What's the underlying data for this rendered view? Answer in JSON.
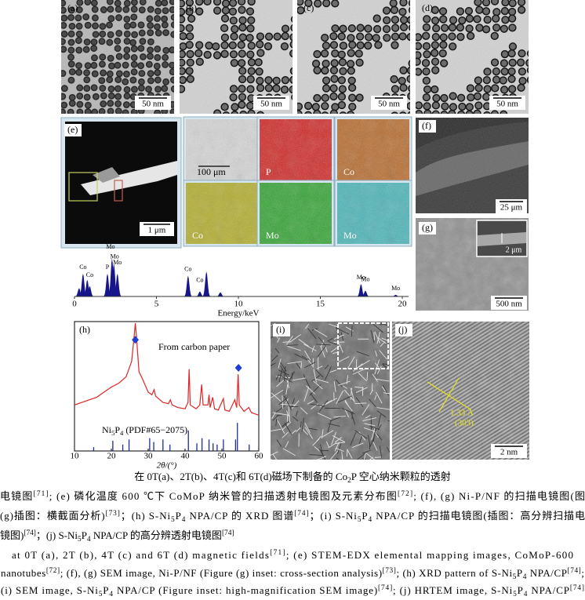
{
  "tem_panels": [
    {
      "label": "(a)",
      "scale_bar": "50 nm"
    },
    {
      "label": "(b)",
      "scale_bar": "50 nm"
    },
    {
      "label": "(c)",
      "scale_bar": "50 nm"
    },
    {
      "label": "(d)",
      "scale_bar": "50 nm"
    }
  ],
  "e_panel": {
    "label": "(e)",
    "scale_bar": "1 μm"
  },
  "element_maps": [
    {
      "text": "100 μm",
      "color": "#d9d9d9"
    },
    {
      "text": "P",
      "color": "#d31a17"
    },
    {
      "text": "Co",
      "color": "#b8641f"
    },
    {
      "text": "Co",
      "color": "#b3ad1e"
    },
    {
      "text": "Mo",
      "color": "#26a326"
    },
    {
      "text": "Mo",
      "color": "#3fb5b8"
    }
  ],
  "f_panel": {
    "label": "(f)",
    "scale_bar": "25 μm"
  },
  "g_panel": {
    "label": "(g)",
    "scale_bar": "500 nm",
    "inset_scale_bar": "2 μm"
  },
  "i_panel": {
    "label": "(i)"
  },
  "j_panel": {
    "label": "(j)",
    "scale_bar": "2 nm",
    "annotation": [
      "1.33 Å",
      "(303)"
    ]
  },
  "chart_data": [
    {
      "type": "spectrum",
      "xlabel": "Energy/keV",
      "xlim": [
        0,
        20
      ],
      "xticks": [
        0,
        5,
        10,
        15,
        20
      ],
      "ylim": [
        0,
        100
      ],
      "color": "#16168a",
      "x": [
        0.28,
        0.52,
        0.78,
        0.93,
        2.01,
        2.29,
        2.4,
        2.62,
        6.93,
        7.65,
        8.05,
        8.9,
        17.48,
        17.75,
        19.6
      ],
      "values": [
        20,
        55,
        40,
        25,
        55,
        92,
        80,
        55,
        50,
        12,
        60,
        10,
        30,
        14,
        4
      ],
      "annotations": [
        {
          "text": "Co",
          "x": 0.52
        },
        {
          "text": "Co",
          "x": 0.93
        },
        {
          "text": "P",
          "x": 2.01
        },
        {
          "text": "Mo",
          "x": 2.2
        },
        {
          "text": "Mo",
          "x": 2.45
        },
        {
          "text": "Mo",
          "x": 2.62
        },
        {
          "text": "Co",
          "x": 6.93
        },
        {
          "text": "Co",
          "x": 7.65
        },
        {
          "text": "Mo",
          "x": 17.48
        },
        {
          "text": "Mo",
          "x": 17.75
        },
        {
          "text": "Mo",
          "x": 19.6
        }
      ]
    },
    {
      "type": "line",
      "label": "(h)",
      "xlabel": "2θ/(°)",
      "xlim": [
        10,
        60
      ],
      "xticks": [
        10,
        20,
        30,
        40,
        50,
        60
      ],
      "ylim": [
        0,
        100
      ],
      "color": "#e02525",
      "annotation": "From carbon paper",
      "x": [
        10,
        12,
        14,
        16,
        18,
        20,
        22,
        24,
        25.5,
        26.2,
        26.5,
        26.8,
        27.5,
        28.5,
        30,
        31,
        31.6,
        32,
        34,
        35.5,
        36,
        36.5,
        38,
        40,
        40.8,
        41.1,
        41.4,
        43,
        44,
        44.5,
        44.9,
        46.2,
        46.5,
        46.8,
        47.5,
        48,
        49,
        50.4,
        50.8,
        52,
        53.5,
        54,
        54.4,
        54.7,
        56,
        57.3,
        58,
        60
      ],
      "values": [
        36,
        38,
        40,
        42,
        46,
        50,
        53,
        58,
        70,
        90,
        100,
        90,
        62,
        56,
        46,
        44,
        48,
        43,
        38,
        37,
        40,
        36,
        34,
        33,
        38,
        64,
        36,
        33,
        36,
        52,
        36,
        36,
        44,
        34,
        42,
        33,
        32,
        41,
        32,
        31,
        40,
        34,
        60,
        36,
        31,
        34,
        30,
        28
      ],
      "markers": {
        "color": "#1c3fd6",
        "x": [
          26.5,
          54.5
        ],
        "values": [
          87,
          65
        ]
      },
      "reference": {
        "name": [
          "Ni",
          {
            "sub": "5"
          },
          "P",
          {
            "sub": "4"
          },
          " (PDF#65−2075)"
        ],
        "color": "#1f2f8f",
        "x": [
          15.2,
          20.4,
          23.1,
          24.8,
          30.4,
          31.5,
          34,
          35.9,
          40.9,
          43.2,
          44.6,
          46.5,
          47.6,
          48.7,
          50.4,
          53.7,
          54.2,
          57.4
        ],
        "values": [
          3,
          8,
          5,
          9,
          10,
          7,
          9,
          5,
          16,
          6,
          10,
          9,
          6,
          5,
          9,
          9,
          22,
          5
        ]
      }
    }
  ],
  "caption": {
    "zh": [
      [
        "在 0T(a)、2T(b)、4T(c)和 6T(d)磁场下制备的 Co",
        {
          "sub": "2"
        },
        "P 空心纳米颗粒的透射"
      ],
      [
        "电镜图",
        {
          "sup": "[71]"
        },
        "; (e) 磷化温度 600 ℃下 CoMoP 纳米管的扫描透射电镜图及元素分布图",
        {
          "sup": "[72]"
        },
        "; (f), (g) Ni-P/NF 的扫描电镜图(图"
      ],
      [
        "(g)插图：横截面分析)",
        {
          "sup": "[73]"
        },
        "；(h) S-Ni",
        {
          "sub": "5"
        },
        "P",
        {
          "sub": "4"
        },
        " NPA/CP 的 XRD 图谱",
        {
          "sup": "[74]"
        },
        "；(i) S-Ni",
        {
          "sub": "5"
        },
        "P",
        {
          "sub": "4"
        },
        " NPA/CP 的扫描电镜图(插图：高分辨扫描电"
      ],
      [
        "镜图)",
        {
          "sup": "[74]"
        },
        "；(j) S-Ni",
        {
          "sub": "5"
        },
        "P",
        {
          "sub": "4"
        },
        " NPA/CP 的高分辨透射电镜图",
        {
          "sup": "[74]"
        }
      ]
    ],
    "en": [
      [
        "at 0T (a), 2T (b), 4T (c) and 6T (d) magnetic fields",
        {
          "sup": "[71]"
        },
        "; (e) STEM-EDX elemental mapping images, CoMoP-600"
      ],
      [
        "nanotubes",
        {
          "sup": "[72]"
        },
        "; (f), (g) SEM image, Ni-P/NF (Figure (g) inset: cross-section analysis)",
        {
          "sup": "[73]"
        },
        "; (h) XRD pattern of S-Ni",
        {
          "sub": "5"
        },
        "P",
        {
          "sub": "4"
        },
        " NPA/CP",
        {
          "sup": "[74]"
        },
        ";"
      ],
      [
        "(i) SEM image, S-Ni",
        {
          "sub": "5"
        },
        "P",
        {
          "sub": "4"
        },
        " NPA/CP (Figure inset: high-magnification SEM image)",
        {
          "sup": "[74]"
        },
        "; (j) HRTEM image, S-Ni",
        {
          "sub": "5"
        },
        "P",
        {
          "sub": "4"
        },
        " NPA/CP",
        {
          "sup": "[74]"
        }
      ]
    ]
  }
}
